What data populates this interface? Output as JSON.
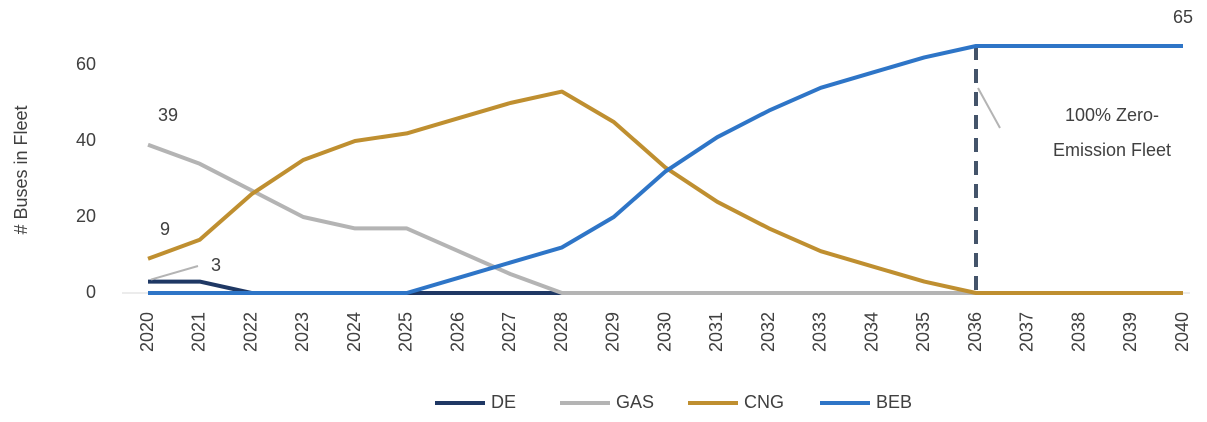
{
  "chart_data": {
    "type": "line",
    "y_label": "# Buses in Fleet",
    "categories": [
      "2020",
      "2021",
      "2022",
      "2023",
      "2024",
      "2025",
      "2026",
      "2027",
      "2028",
      "2029",
      "2030",
      "2031",
      "2032",
      "2033",
      "2034",
      "2035",
      "2036",
      "2037",
      "2038",
      "2039",
      "2040"
    ],
    "series": [
      {
        "name": "DE",
        "color": "#1f3864",
        "values": [
          3,
          3,
          0,
          0,
          0,
          0,
          0,
          0,
          0,
          0,
          0,
          0,
          0,
          0,
          0,
          0,
          0,
          0,
          0,
          0,
          0
        ]
      },
      {
        "name": "GAS",
        "color": "#b4b4b4",
        "values": [
          39,
          34,
          27,
          20,
          17,
          17,
          11,
          5,
          0,
          0,
          0,
          0,
          0,
          0,
          0,
          0,
          0,
          0,
          0,
          0,
          0
        ]
      },
      {
        "name": "CNG",
        "color": "#bf8f30",
        "values": [
          9,
          14,
          26,
          35,
          40,
          42,
          46,
          50,
          53,
          45,
          33,
          24,
          17,
          11,
          7,
          3,
          0,
          0,
          0,
          0,
          0
        ]
      },
      {
        "name": "BEB",
        "color": "#2e75c7",
        "values": [
          0,
          0,
          0,
          0,
          0,
          0,
          4,
          8,
          12,
          20,
          32,
          41,
          48,
          54,
          58,
          62,
          65,
          65,
          65,
          65,
          65
        ]
      }
    ],
    "ylim": [
      0,
      70
    ],
    "yticks": [
      0,
      20,
      40,
      60
    ],
    "reference_x": "2036",
    "reference_color": "#44546a",
    "annotation_lines": [
      "100% Zero-",
      "Emission Fleet"
    ]
  }
}
